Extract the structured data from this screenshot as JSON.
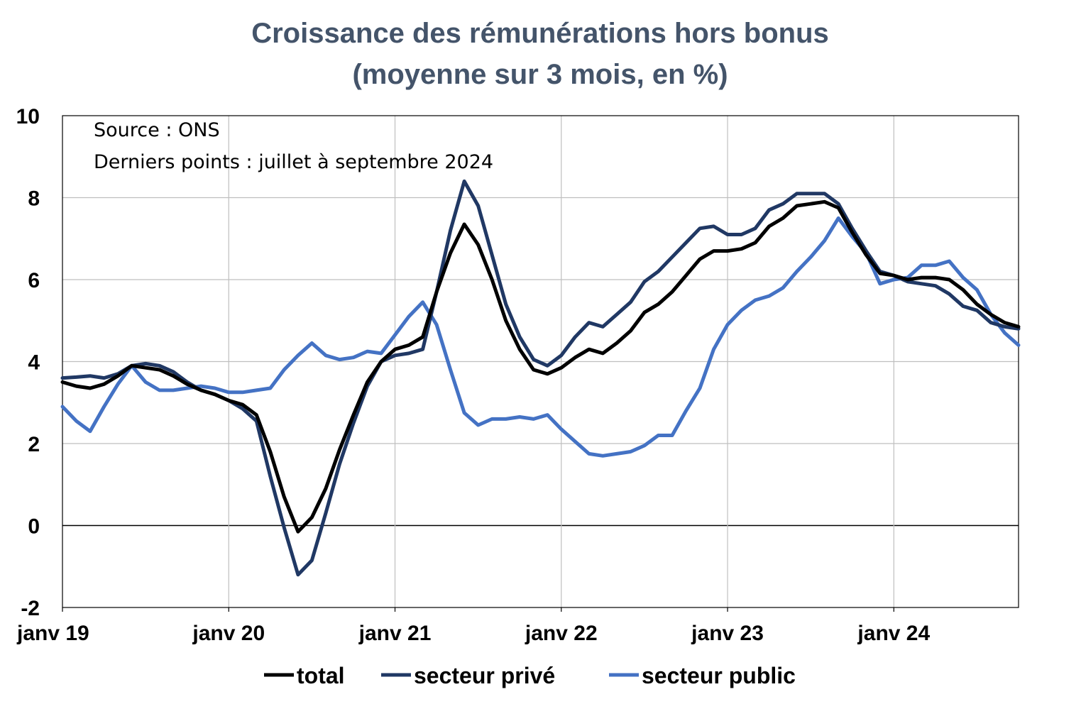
{
  "chart_data": {
    "type": "line",
    "title": "Croissance des rémunérations hors bonus",
    "subtitle": "(moyenne sur 3 mois, en %)",
    "annotations": [
      "Source : ONS",
      "Derniers points : juillet à septembre 2024"
    ],
    "xlabel": "",
    "ylabel": "",
    "ylim": [
      -2,
      10
    ],
    "yticks": [
      -2,
      0,
      2,
      4,
      6,
      8,
      10
    ],
    "xtick_labels": [
      "janv 19",
      "janv 20",
      "janv 21",
      "janv 22",
      "janv 23",
      "janv 24"
    ],
    "x_start": "janv 19",
    "x_end": "sept 24",
    "grid": true,
    "legend_position": "bottom",
    "series": [
      {
        "name": "total",
        "color": "#000000",
        "values": [
          3.5,
          3.4,
          3.35,
          3.45,
          3.65,
          3.9,
          3.85,
          3.8,
          3.65,
          3.45,
          3.3,
          3.2,
          3.05,
          2.95,
          2.7,
          1.8,
          0.7,
          -0.15,
          0.2,
          0.9,
          1.85,
          2.7,
          3.5,
          4.0,
          4.3,
          4.4,
          4.6,
          5.7,
          6.65,
          7.35,
          6.85,
          6.0,
          5.0,
          4.3,
          3.8,
          3.7,
          3.85,
          4.1,
          4.3,
          4.2,
          4.45,
          4.75,
          5.2,
          5.4,
          5.7,
          6.1,
          6.5,
          6.7,
          6.7,
          6.75,
          6.9,
          7.3,
          7.5,
          7.8,
          7.85,
          7.9,
          7.75,
          7.15,
          6.6,
          6.15,
          6.1,
          6.0,
          6.05,
          6.05,
          6.0,
          5.75,
          5.4,
          5.15,
          4.95,
          4.85
        ]
      },
      {
        "name": "secteur privé",
        "color": "#203864",
        "values": [
          3.6,
          3.62,
          3.65,
          3.6,
          3.7,
          3.9,
          3.95,
          3.9,
          3.75,
          3.5,
          3.3,
          3.2,
          3.05,
          2.85,
          2.55,
          1.2,
          -0.05,
          -1.2,
          -0.85,
          0.3,
          1.5,
          2.5,
          3.4,
          4.0,
          4.15,
          4.2,
          4.3,
          5.7,
          7.2,
          8.4,
          7.8,
          6.6,
          5.4,
          4.6,
          4.05,
          3.9,
          4.15,
          4.6,
          4.95,
          4.85,
          5.15,
          5.45,
          5.95,
          6.2,
          6.55,
          6.9,
          7.25,
          7.3,
          7.1,
          7.1,
          7.25,
          7.7,
          7.85,
          8.1,
          8.1,
          8.1,
          7.85,
          7.25,
          6.7,
          6.2,
          6.1,
          5.95,
          5.9,
          5.85,
          5.65,
          5.35,
          5.25,
          4.95,
          4.85,
          4.8
        ]
      },
      {
        "name": "secteur public",
        "color": "#4472c4",
        "values": [
          2.9,
          2.55,
          2.3,
          2.9,
          3.45,
          3.9,
          3.5,
          3.3,
          3.3,
          3.35,
          3.4,
          3.35,
          3.25,
          3.25,
          3.3,
          3.35,
          3.8,
          4.15,
          4.45,
          4.15,
          4.05,
          4.1,
          4.25,
          4.2,
          4.65,
          5.1,
          5.45,
          4.9,
          3.8,
          2.75,
          2.45,
          2.6,
          2.6,
          2.65,
          2.6,
          2.7,
          2.35,
          2.05,
          1.75,
          1.7,
          1.75,
          1.8,
          1.95,
          2.2,
          2.2,
          2.8,
          3.35,
          4.3,
          4.9,
          5.25,
          5.5,
          5.6,
          5.8,
          6.2,
          6.55,
          6.95,
          7.5,
          7.05,
          6.65,
          5.9,
          6.0,
          6.05,
          6.35,
          6.35,
          6.45,
          6.05,
          5.75,
          5.15,
          4.7,
          4.4
        ]
      }
    ]
  }
}
